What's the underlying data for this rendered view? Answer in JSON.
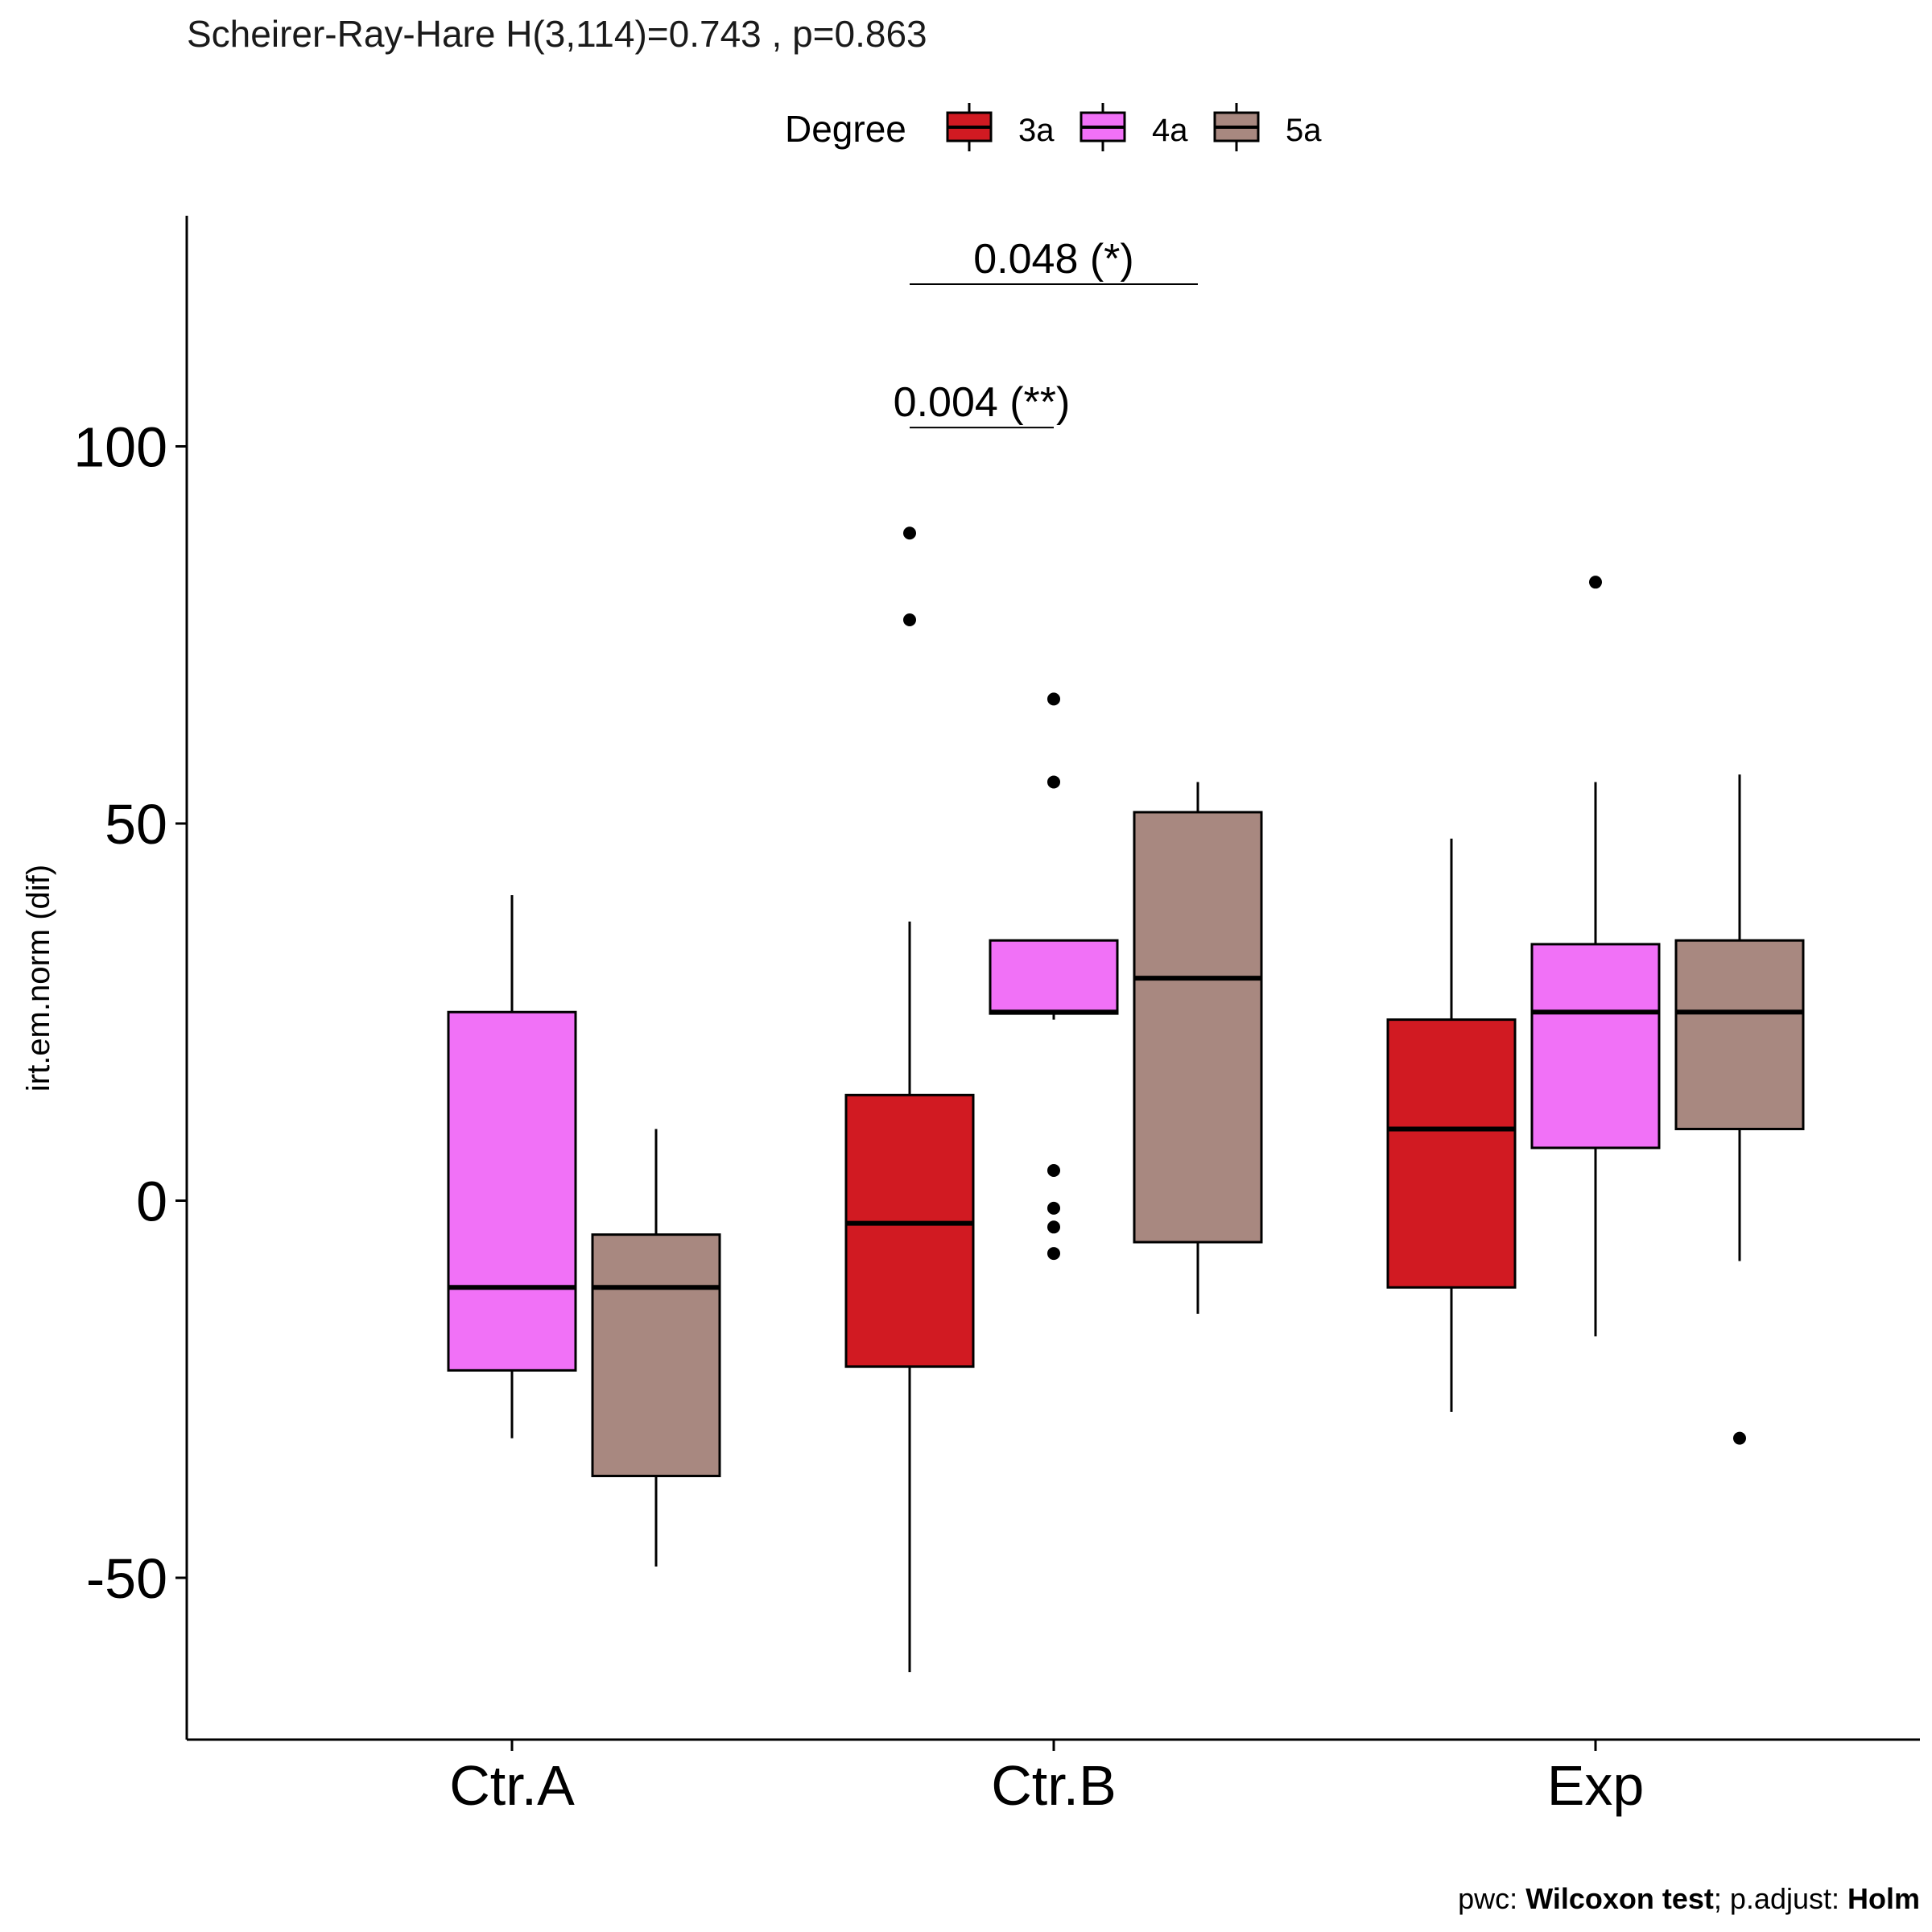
{
  "chart_data": {
    "type": "boxplot",
    "subtitle": "Scheirer-Ray-Hare H(3,114)=0.743 , p=0.863",
    "xlabel": "",
    "ylabel": "irt.em.norm (dif)",
    "ylim": [
      -71,
      131
    ],
    "yticks": [
      -50,
      0,
      50,
      100
    ],
    "yticklabels": [
      "-50",
      "0",
      "50",
      "100"
    ],
    "categories": [
      "Ctr.A",
      "Ctr.B",
      "Exp"
    ],
    "grid": false,
    "legend": {
      "title": "Degree",
      "position": "top",
      "entries": [
        "3a",
        "4a",
        "5a"
      ]
    },
    "colors": {
      "3a": "#D11A22",
      "4a": "#F171F7",
      "5a": "#A88880"
    },
    "series": [
      {
        "name": "3a",
        "boxes": [
          null,
          {
            "category": "Ctr.B",
            "whisker_low": -62.5,
            "q1": -22,
            "median": -3,
            "q3": 14,
            "whisker_high": 37,
            "outliers": [
              88.5,
              77
            ]
          },
          {
            "category": "Exp",
            "whisker_low": -28,
            "q1": -11.5,
            "median": 9.5,
            "q3": 24,
            "whisker_high": 48,
            "outliers": []
          }
        ]
      },
      {
        "name": "4a",
        "boxes": [
          {
            "category": "Ctr.A",
            "whisker_low": -31.5,
            "q1": -22.5,
            "median": -11.5,
            "q3": 25,
            "whisker_high": 40.5,
            "outliers": []
          },
          {
            "category": "Ctr.B",
            "whisker_low": 24,
            "q1": 24.8,
            "median": 25,
            "q3": 34.5,
            "whisker_high": 34.5,
            "outliers": [
              66.5,
              55.5,
              4,
              -1,
              -3.5,
              -7
            ]
          },
          {
            "category": "Exp",
            "whisker_low": -18,
            "q1": 7,
            "median": 25,
            "q3": 34,
            "whisker_high": 55.5,
            "outliers": [
              82
            ]
          }
        ]
      },
      {
        "name": "5a",
        "boxes": [
          {
            "category": "Ctr.A",
            "whisker_low": -48.5,
            "q1": -36.5,
            "median": -11.5,
            "q3": -4.5,
            "whisker_high": 9.5,
            "outliers": []
          },
          {
            "category": "Ctr.B",
            "whisker_low": -15,
            "q1": -5.5,
            "median": 29.5,
            "q3": 51.5,
            "whisker_high": 55.5,
            "outliers": []
          },
          {
            "category": "Exp",
            "whisker_low": -8,
            "q1": 9.5,
            "median": 25,
            "q3": 34.5,
            "whisker_high": 56.5,
            "outliers": [
              -31.5
            ]
          }
        ]
      }
    ],
    "comparisons": [
      {
        "category": "Ctr.B",
        "from": "3a",
        "to": "4a",
        "label": "0.004 (**)",
        "y": 102.5
      },
      {
        "category": "Ctr.B",
        "from": "3a",
        "to": "5a",
        "label": "0.048 (*)",
        "y": 121.5
      }
    ]
  },
  "caption": {
    "prefix": "pwc: ",
    "test": "Wilcoxon test",
    "middle": "; p.adjust: ",
    "method": "Holm"
  }
}
